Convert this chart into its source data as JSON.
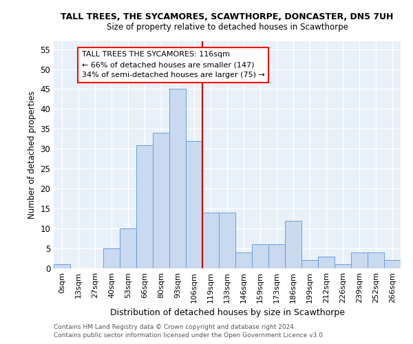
{
  "title1": "TALL TREES, THE SYCAMORES, SCAWTHORPE, DONCASTER, DN5 7UH",
  "title2": "Size of property relative to detached houses in Scawthorpe",
  "xlabel": "Distribution of detached houses by size in Scawthorpe",
  "ylabel": "Number of detached properties",
  "bar_labels": [
    "0sqm",
    "13sqm",
    "27sqm",
    "40sqm",
    "53sqm",
    "66sqm",
    "80sqm",
    "93sqm",
    "106sqm",
    "119sqm",
    "133sqm",
    "146sqm",
    "159sqm",
    "173sqm",
    "186sqm",
    "199sqm",
    "212sqm",
    "226sqm",
    "239sqm",
    "252sqm",
    "266sqm"
  ],
  "bar_values": [
    1,
    0,
    0,
    5,
    10,
    31,
    34,
    45,
    32,
    14,
    14,
    4,
    6,
    6,
    12,
    2,
    3,
    1,
    4,
    4,
    2
  ],
  "bar_color": "#c8d9f0",
  "bar_edge_color": "#6a9fd8",
  "vline_x": 8.5,
  "vline_color": "#cc0000",
  "annotation_text": "TALL TREES THE SYCAMORES: 116sqm\n← 66% of detached houses are smaller (147)\n34% of semi-detached houses are larger (75) →",
  "ylim": [
    0,
    57
  ],
  "yticks": [
    0,
    5,
    10,
    15,
    20,
    25,
    30,
    35,
    40,
    45,
    50,
    55
  ],
  "footer1": "Contains HM Land Registry data © Crown copyright and database right 2024.",
  "footer2": "Contains public sector information licensed under the Open Government Licence v3.0.",
  "bg_color": "#e8f0f8"
}
